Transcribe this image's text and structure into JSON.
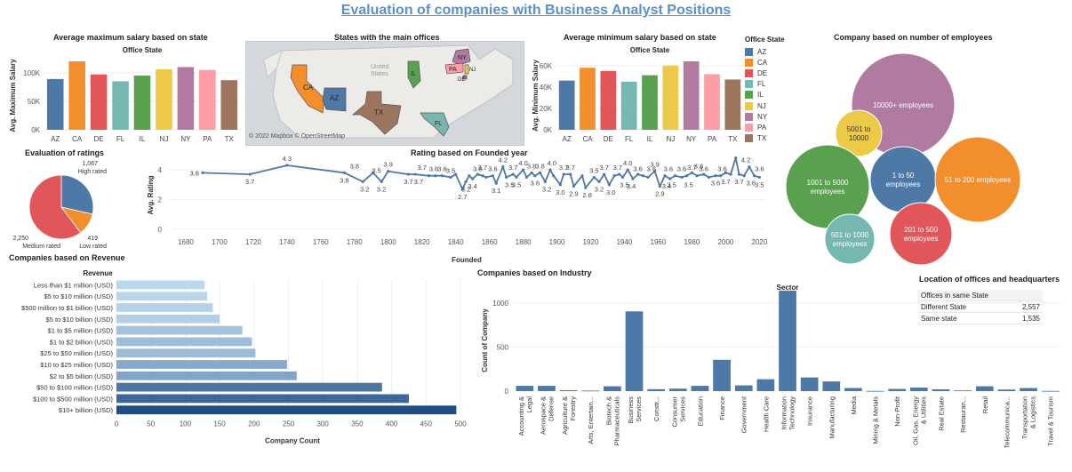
{
  "page_title": "Evaluation of companies with Business Analyst Positions",
  "chart_data": [
    {
      "id": "max_salary",
      "type": "bar",
      "title": "Average maximum salary based on state",
      "subtitle": "Office State",
      "ylabel": "Avg. Maximum Salary",
      "categories": [
        "AZ",
        "CA",
        "DE",
        "FL",
        "IL",
        "NJ",
        "NY",
        "PA",
        "TX"
      ],
      "values": [
        89000,
        120000,
        97000,
        85000,
        95000,
        106000,
        110000,
        105000,
        87000
      ],
      "ylim": [
        0,
        120000
      ],
      "yticks": [
        0,
        50000,
        100000
      ],
      "ytick_labels": [
        "0K",
        "50K",
        "100K"
      ]
    },
    {
      "id": "map",
      "type": "map",
      "title": "States with the main offices",
      "states": [
        "CA",
        "AZ",
        "TX",
        "IL",
        "FL",
        "NY",
        "PA",
        "NJ",
        "DE"
      ],
      "credit": "© 2022 Mapbox © OpenStreetMap",
      "basemap_labels": [
        "United",
        "States"
      ]
    },
    {
      "id": "min_salary",
      "type": "bar",
      "title": "Average minimum salary based on state",
      "subtitle": "Office State",
      "ylabel": "Avg. Minimum Salary",
      "categories": [
        "AZ",
        "CA",
        "DE",
        "FL",
        "IL",
        "NJ",
        "NY",
        "PA",
        "TX"
      ],
      "values": [
        46000,
        58000,
        55000,
        45000,
        51000,
        60000,
        64000,
        52000,
        47000
      ],
      "ylim": [
        0,
        64000
      ],
      "yticks": [
        0,
        20000,
        40000,
        60000
      ],
      "ytick_labels": [
        "0K",
        "20K",
        "40K",
        "60K"
      ]
    },
    {
      "id": "employees",
      "type": "bubble",
      "title": "Company based on number of employees",
      "items": [
        {
          "label": "10000+ employees",
          "size": 10,
          "color": "#b07aa1"
        },
        {
          "label": "5001 to 10000",
          "size": 2.5,
          "color": "#edc948"
        },
        {
          "label": "1001 to 5000 employees",
          "size": 7,
          "color": "#59a14f"
        },
        {
          "label": "1 to 50 employees",
          "size": 4,
          "color": "#4e79a7"
        },
        {
          "label": "51 to 200 employees",
          "size": 7.2,
          "color": "#f28e2b"
        },
        {
          "label": "501 to 1000 employees",
          "size": 2.7,
          "color": "#76b7b2"
        },
        {
          "label": "201 to 500 employees",
          "size": 3.6,
          "color": "#e15759"
        }
      ]
    },
    {
      "id": "ratings",
      "type": "pie",
      "title": "Evaluation of ratings",
      "slices": [
        {
          "label": "High rated",
          "value": 1067,
          "value_label": "1,067",
          "color": "#4e79a7"
        },
        {
          "label": "Low rated",
          "value": 419,
          "value_label": "419",
          "color": "#f28e2b"
        },
        {
          "label": "Medium rated",
          "value": 2250,
          "value_label": "2,250",
          "color": "#e15759"
        }
      ]
    },
    {
      "id": "rating_founded",
      "type": "line",
      "title": "Rating based on Founded year",
      "xlabel": "Founded",
      "ylabel": "Avg. Rating",
      "xlim": [
        1670,
        2023
      ],
      "ylim": [
        0,
        4.6
      ],
      "xticks": [
        1680,
        1700,
        1720,
        1740,
        1760,
        1780,
        1800,
        1820,
        1840,
        1860,
        1880,
        1900,
        1920,
        1940,
        1960,
        1980,
        2000,
        2020
      ],
      "yticks": [
        0,
        2,
        4
      ],
      "points": [
        [
          1690,
          3.8
        ],
        [
          1718,
          3.7
        ],
        [
          1740,
          4.3
        ],
        [
          1774,
          3.8
        ],
        [
          1785,
          3.2
        ],
        [
          1791,
          3.8
        ],
        [
          1796,
          3.2
        ],
        [
          1800,
          3.9
        ],
        [
          1812,
          3.7
        ],
        [
          1816,
          3.7
        ],
        [
          1824,
          3.6
        ],
        [
          1828,
          3.6
        ],
        [
          1832,
          3.6
        ],
        [
          1837,
          3.5
        ],
        [
          1840,
          3.7
        ],
        [
          1844,
          2.7
        ],
        [
          1846,
          3.2
        ],
        [
          1848,
          3.6
        ],
        [
          1850,
          3.4
        ],
        [
          1853,
          3.7
        ],
        [
          1856,
          3.6
        ],
        [
          1858,
          3.5
        ],
        [
          1862,
          3.6
        ],
        [
          1864,
          3.1
        ],
        [
          1868,
          4.2
        ],
        [
          1870,
          3.5
        ],
        [
          1874,
          3.7
        ],
        [
          1876,
          3.5
        ],
        [
          1880,
          4.0
        ],
        [
          1882,
          3.5
        ],
        [
          1885,
          3.8
        ],
        [
          1887,
          3.6
        ],
        [
          1890,
          3.8
        ],
        [
          1893,
          3.2
        ],
        [
          1896,
          4.0
        ],
        [
          1898,
          3.6
        ],
        [
          1902,
          3.0
        ],
        [
          1904,
          3.7
        ],
        [
          1908,
          3.7
        ],
        [
          1910,
          2.9
        ],
        [
          1915,
          3.6
        ],
        [
          1917,
          2.8
        ],
        [
          1922,
          3.5
        ],
        [
          1925,
          3.2
        ],
        [
          1928,
          3.7
        ],
        [
          1931,
          3.0
        ],
        [
          1934,
          3.6
        ],
        [
          1937,
          3.7
        ],
        [
          1939,
          3.5
        ],
        [
          1942,
          4.0
        ],
        [
          1945,
          3.4
        ],
        [
          1948,
          3.7
        ],
        [
          1951,
          3.6
        ],
        [
          1954,
          3.5
        ],
        [
          1958,
          3.9
        ],
        [
          1961,
          2.9
        ],
        [
          1964,
          3.6
        ],
        [
          1967,
          3.4
        ],
        [
          1970,
          3.6
        ],
        [
          1974,
          3.5
        ],
        [
          1977,
          3.6
        ],
        [
          1980,
          3.8
        ],
        [
          1983,
          3.6
        ],
        [
          1987,
          3.7
        ],
        [
          1990,
          3.5
        ],
        [
          1994,
          3.6
        ],
        [
          1997,
          3.6
        ],
        [
          2000,
          3.8
        ],
        [
          2003,
          3.7
        ],
        [
          2006,
          4.8
        ],
        [
          2008,
          3.7
        ],
        [
          2011,
          3.6
        ],
        [
          2014,
          4.2
        ],
        [
          2017,
          3.6
        ],
        [
          2020,
          3.5
        ]
      ],
      "labels": [
        {
          "x": 1690,
          "y": 3.8,
          "t": "3.8",
          "pos": "l"
        },
        {
          "x": 1718,
          "y": 3.7,
          "t": "3.7",
          "pos": "b"
        },
        {
          "x": 1740,
          "y": 4.3,
          "t": "4.3",
          "pos": "t"
        },
        {
          "x": 1774,
          "y": 3.8,
          "t": "3.8",
          "pos": "b"
        },
        {
          "x": 1780,
          "y": 3.8,
          "t": "3.8",
          "pos": "t"
        },
        {
          "x": 1786,
          "y": 3.2,
          "t": "3.2",
          "pos": "b"
        },
        {
          "x": 1793,
          "y": 3.5,
          "t": "3.5",
          "pos": "t"
        },
        {
          "x": 1796,
          "y": 3.2,
          "t": "3.2",
          "pos": "b"
        },
        {
          "x": 1800,
          "y": 3.9,
          "t": "3.9",
          "pos": "t"
        },
        {
          "x": 1812,
          "y": 3.7,
          "t": "3.7",
          "pos": "b"
        },
        {
          "x": 1820,
          "y": 3.7,
          "t": "3.7",
          "pos": "t"
        },
        {
          "x": 1818,
          "y": 3.7,
          "t": "3.7",
          "pos": "b"
        },
        {
          "x": 1827,
          "y": 3.6,
          "t": "3.6",
          "pos": "t"
        },
        {
          "x": 1832,
          "y": 3.6,
          "t": "3.6",
          "pos": "t"
        },
        {
          "x": 1837,
          "y": 3.5,
          "t": "3.5",
          "pos": "t"
        },
        {
          "x": 1844,
          "y": 2.7,
          "t": "2.7",
          "pos": "b"
        },
        {
          "x": 1846,
          "y": 3.2,
          "t": "3.2",
          "pos": "b"
        },
        {
          "x": 1850,
          "y": 3.4,
          "t": "3.4",
          "pos": "b"
        },
        {
          "x": 1853,
          "y": 3.6,
          "t": "3.6",
          "pos": "t"
        },
        {
          "x": 1856,
          "y": 3.7,
          "t": "3.7",
          "pos": "t"
        },
        {
          "x": 1862,
          "y": 3.6,
          "t": "3.6",
          "pos": "t"
        },
        {
          "x": 1864,
          "y": 3.1,
          "t": "3.1",
          "pos": "b"
        },
        {
          "x": 1868,
          "y": 4.2,
          "t": "4.2",
          "pos": "t"
        },
        {
          "x": 1872,
          "y": 3.5,
          "t": "3.5",
          "pos": "b"
        },
        {
          "x": 1874,
          "y": 3.7,
          "t": "3.7",
          "pos": "t"
        },
        {
          "x": 1876,
          "y": 3.5,
          "t": "3.5",
          "pos": "b"
        },
        {
          "x": 1880,
          "y": 4.0,
          "t": "4.0",
          "pos": "t"
        },
        {
          "x": 1885,
          "y": 3.8,
          "t": "3.8",
          "pos": "t"
        },
        {
          "x": 1887,
          "y": 3.6,
          "t": "3.6",
          "pos": "b"
        },
        {
          "x": 1890,
          "y": 3.8,
          "t": "3.8",
          "pos": "t"
        },
        {
          "x": 1894,
          "y": 3.2,
          "t": "3.2",
          "pos": "b"
        },
        {
          "x": 1897,
          "y": 4.0,
          "t": "4.0",
          "pos": "t"
        },
        {
          "x": 1902,
          "y": 3.0,
          "t": "3.0",
          "pos": "b"
        },
        {
          "x": 1904,
          "y": 3.7,
          "t": "3.7",
          "pos": "t"
        },
        {
          "x": 1908,
          "y": 3.7,
          "t": "3.7",
          "pos": "t"
        },
        {
          "x": 1910,
          "y": 2.9,
          "t": "2.9",
          "pos": "b"
        },
        {
          "x": 1918,
          "y": 2.8,
          "t": "2.8",
          "pos": "b"
        },
        {
          "x": 1922,
          "y": 3.5,
          "t": "3.5",
          "pos": "t"
        },
        {
          "x": 1925,
          "y": 3.2,
          "t": "3.2",
          "pos": "b"
        },
        {
          "x": 1928,
          "y": 3.7,
          "t": "3.7",
          "pos": "t"
        },
        {
          "x": 1932,
          "y": 3.0,
          "t": "3.0",
          "pos": "b"
        },
        {
          "x": 1936,
          "y": 3.7,
          "t": "3.7",
          "pos": "t"
        },
        {
          "x": 1940,
          "y": 3.5,
          "t": "3.5",
          "pos": "b"
        },
        {
          "x": 1942,
          "y": 4.0,
          "t": "4.0",
          "pos": "t"
        },
        {
          "x": 1944,
          "y": 3.4,
          "t": "3.4",
          "pos": "b"
        },
        {
          "x": 1948,
          "y": 3.6,
          "t": "3.6",
          "pos": "t"
        },
        {
          "x": 1958,
          "y": 3.9,
          "t": "3.9",
          "pos": "t"
        },
        {
          "x": 1956,
          "y": 3.6,
          "t": "3.6",
          "pos": "t"
        },
        {
          "x": 1961,
          "y": 2.9,
          "t": "2.9",
          "pos": "b"
        },
        {
          "x": 1965,
          "y": 3.4,
          "t": "3.4",
          "pos": "b"
        },
        {
          "x": 1968,
          "y": 3.5,
          "t": "3.5",
          "pos": "b"
        },
        {
          "x": 1966,
          "y": 3.6,
          "t": "3.6",
          "pos": "t"
        },
        {
          "x": 1974,
          "y": 3.6,
          "t": "3.6",
          "pos": "t"
        },
        {
          "x": 1978,
          "y": 3.5,
          "t": "3.5",
          "pos": "b"
        },
        {
          "x": 1980,
          "y": 3.7,
          "t": "3.7",
          "pos": "t"
        },
        {
          "x": 1984,
          "y": 3.8,
          "t": "3.8",
          "pos": "t"
        },
        {
          "x": 1987,
          "y": 3.6,
          "t": "3.6",
          "pos": "t"
        },
        {
          "x": 1994,
          "y": 3.6,
          "t": "3.6",
          "pos": "b"
        },
        {
          "x": 1998,
          "y": 3.6,
          "t": "3.6",
          "pos": "t"
        },
        {
          "x": 2000,
          "y": 3.7,
          "t": "3.7",
          "pos": "b"
        },
        {
          "x": 2005,
          "y": 4.8,
          "t": "4.8",
          "pos": "t"
        },
        {
          "x": 2008,
          "y": 3.7,
          "t": "3.7",
          "pos": "b"
        },
        {
          "x": 2012,
          "y": 4.2,
          "t": "4.2",
          "pos": "t"
        },
        {
          "x": 2015,
          "y": 3.6,
          "t": "3.6",
          "pos": "b"
        },
        {
          "x": 2020,
          "y": 3.6,
          "t": "3.6",
          "pos": "t"
        },
        {
          "x": 2020,
          "y": 3.5,
          "t": "3.5",
          "pos": "b"
        }
      ]
    },
    {
      "id": "revenue",
      "type": "bar",
      "orientation": "horizontal",
      "title": "Companies based on Revenue",
      "subtitle": "Revenue",
      "xlabel": "Company Count",
      "categories": [
        "Less than $1 million (USD)",
        "$5 to $10 million (USD)",
        "$500 million to $1 billion (USD)",
        "$5 to $10 billion (USD)",
        "$1 to $5 million (USD)",
        "$1 to $2 billion (USD)",
        "$25 to $50 million (USD)",
        "$10 to $25 million (USD)",
        "$2 to $5 billion (USD)",
        "$50 to $100 million (USD)",
        "$100 to $500 million (USD)",
        "$10+ billion (USD)"
      ],
      "values": [
        128,
        132,
        140,
        150,
        183,
        197,
        202,
        248,
        262,
        386,
        425,
        494
      ],
      "xlim": [
        0,
        500
      ],
      "xticks": [
        0,
        50,
        100,
        150,
        200,
        250,
        300,
        350,
        400,
        450,
        500
      ]
    },
    {
      "id": "industry",
      "type": "bar",
      "title": "Companies based on Industry",
      "subtitle": "Sector",
      "ylabel": "Count of Company",
      "categories": [
        "Accounting & Legal",
        "Aerospace & Defense",
        "Agriculture & Forestry",
        "Arts, Entertain...",
        "Biotech & Pharmaceuticals",
        "Business Services",
        "Constr...",
        "Consumer Services",
        "Education",
        "Finance",
        "Government",
        "Health Care",
        "Information Technology",
        "Insurance",
        "Manufacturing",
        "Media",
        "Mining & Metals",
        "Non-Profit",
        "Oil, Gas, Energy & Utilities",
        "Real Estate",
        "Restauran...",
        "Retail",
        "Telecommunica...",
        "Transportation & Logistics",
        "Travel & Tourism"
      ],
      "category_lines": [
        [
          "Accounting &",
          "Legal"
        ],
        [
          "Aerospace &",
          "Defense"
        ],
        [
          "Agriculture &",
          "Forestry"
        ],
        [
          "Arts, Entertain..."
        ],
        [
          "Biotech &",
          "Pharmaceuticals"
        ],
        [
          "Business",
          "Services"
        ],
        [
          "Constr..."
        ],
        [
          "Consumer",
          "Services"
        ],
        [
          "Education"
        ],
        [
          "Finance"
        ],
        [
          "Government"
        ],
        [
          "Health Care"
        ],
        [
          "Information",
          "Technology"
        ],
        [
          "Insurance"
        ],
        [
          "Manufacturing"
        ],
        [
          "Media"
        ],
        [
          "Mining & Metals"
        ],
        [
          "Non-Profit"
        ],
        [
          "Oil, Gas, Energy",
          "& Utilities"
        ],
        [
          "Real Estate"
        ],
        [
          "Restauran..."
        ],
        [
          "Retail"
        ],
        [
          "Telecommunica..."
        ],
        [
          "Transportation",
          "& Logistics"
        ],
        [
          "Travel & Tourism"
        ]
      ],
      "values": [
        60,
        60,
        10,
        6,
        55,
        905,
        22,
        28,
        60,
        355,
        65,
        135,
        1140,
        155,
        110,
        35,
        2,
        25,
        40,
        20,
        8,
        55,
        18,
        35,
        2
      ],
      "ylim": [
        0,
        1150
      ],
      "yticks": [
        0,
        500,
        1000
      ]
    }
  ],
  "legend": {
    "title": "Office State",
    "items": [
      {
        "label": "AZ",
        "color": "#4e79a7"
      },
      {
        "label": "CA",
        "color": "#f28e2b"
      },
      {
        "label": "DE",
        "color": "#e15759"
      },
      {
        "label": "FL",
        "color": "#76b7b2"
      },
      {
        "label": "IL",
        "color": "#59a14f"
      },
      {
        "label": "NJ",
        "color": "#edc948"
      },
      {
        "label": "NY",
        "color": "#b07aa1"
      },
      {
        "label": "PA",
        "color": "#ff9da7"
      },
      {
        "label": "TX",
        "color": "#9c755f"
      }
    ]
  },
  "location_table": {
    "title": "Location of offices and headquarters",
    "header": "Offices in same State",
    "rows": [
      {
        "label": "Different State",
        "value": "2,557"
      },
      {
        "label": "Same state",
        "value": "1,535"
      }
    ]
  }
}
